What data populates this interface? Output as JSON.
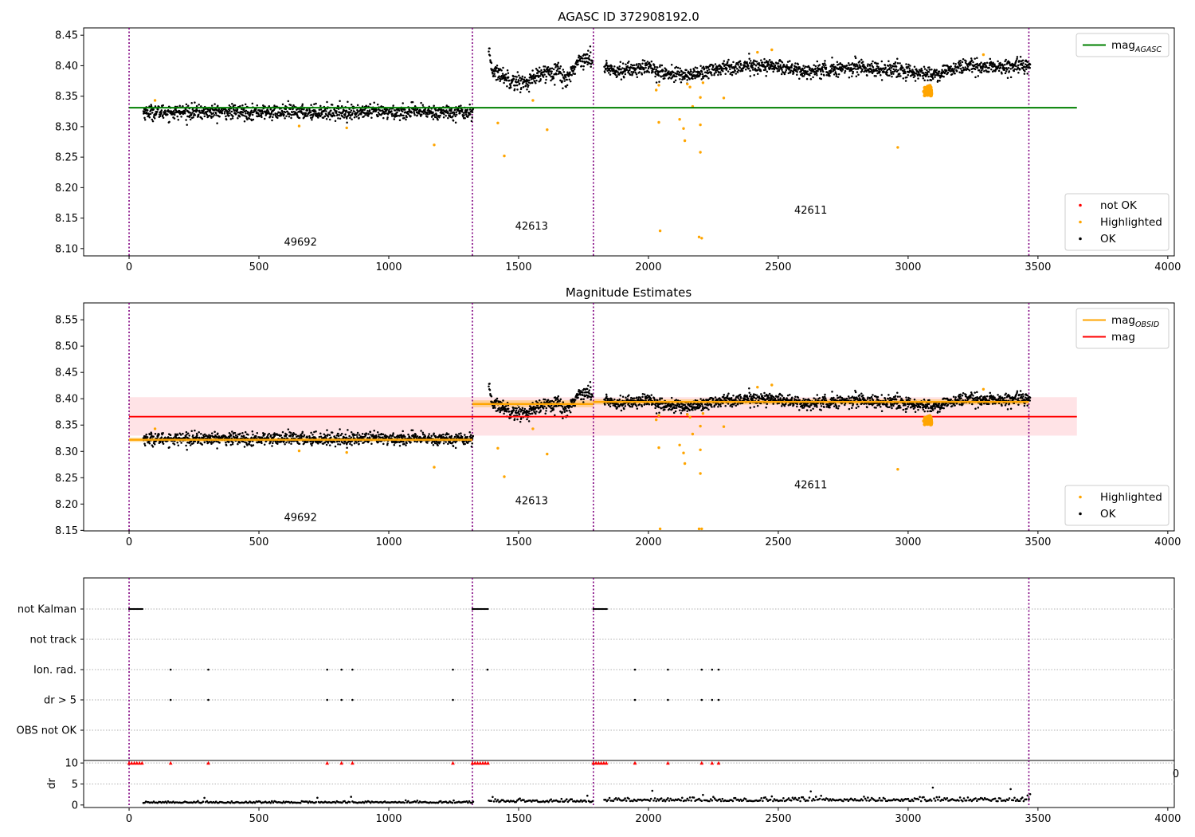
{
  "colors": {
    "ok": "#000000",
    "highlighted": "#FFA500",
    "not_ok": "#FF0000",
    "obs_boundary": "#800080",
    "agasc_line": "#008000",
    "obsid_line": "#FFA500",
    "mag_line": "#FF0000",
    "mag_band": "#FFC0C8"
  },
  "chart_data": [
    {
      "type": "scatter",
      "title": "AGASC ID 372908192.0",
      "xlim": [
        -175,
        4025
      ],
      "ylim": [
        8.088,
        8.462
      ],
      "xticks": [
        0,
        500,
        1000,
        1500,
        2000,
        2500,
        3000,
        3500,
        4000
      ],
      "yticks": [
        8.1,
        8.15,
        8.2,
        8.25,
        8.3,
        8.35,
        8.4,
        8.45
      ],
      "ytick_labels": [
        "8.10",
        "8.15",
        "8.20",
        "8.25",
        "8.30",
        "8.35",
        "8.40",
        "8.45"
      ],
      "obs_boundaries": [
        0,
        1322,
        1788,
        3465
      ],
      "obs_labels": [
        {
          "text": "49692",
          "x": 660,
          "y": 8.105
        },
        {
          "text": "42613",
          "x": 1550,
          "y": 8.131
        },
        {
          "text": "42611",
          "x": 2625,
          "y": 8.157
        }
      ],
      "reference_line": {
        "name": "mag_AGASC",
        "value": 8.331,
        "x_range": [
          0,
          3650
        ]
      },
      "ok_segments": [
        {
          "x_range": [
            55,
            1325
          ],
          "trend": [
            [
              55,
              8.324
            ],
            [
              1325,
              8.324
            ]
          ],
          "noise": 0.006
        },
        {
          "x_range": [
            1385,
            1785
          ],
          "trend": [
            [
              1385,
              8.418
            ],
            [
              1400,
              8.392
            ],
            [
              1480,
              8.375
            ],
            [
              1530,
              8.372
            ],
            [
              1600,
              8.388
            ],
            [
              1650,
              8.395
            ],
            [
              1680,
              8.375
            ],
            [
              1710,
              8.395
            ],
            [
              1740,
              8.412
            ],
            [
              1785,
              8.41
            ]
          ],
          "noise": 0.007
        },
        {
          "x_range": [
            1830,
            3470
          ],
          "trend": [
            [
              1830,
              8.397
            ],
            [
              1900,
              8.392
            ],
            [
              2000,
              8.398
            ],
            [
              2050,
              8.388
            ],
            [
              2150,
              8.384
            ],
            [
              2300,
              8.398
            ],
            [
              2500,
              8.4
            ],
            [
              2600,
              8.39
            ],
            [
              2800,
              8.398
            ],
            [
              3000,
              8.39
            ],
            [
              3100,
              8.385
            ],
            [
              3200,
              8.398
            ],
            [
              3470,
              8.398
            ]
          ],
          "noise": 0.006
        }
      ],
      "highlighted_points": [
        [
          100,
          8.343
        ],
        [
          655,
          8.301
        ],
        [
          838,
          8.298
        ],
        [
          1175,
          8.27
        ],
        [
          1420,
          8.306
        ],
        [
          1445,
          8.252
        ],
        [
          1555,
          8.343
        ],
        [
          1610,
          8.295
        ],
        [
          2040,
          8.307
        ],
        [
          2045,
          8.129
        ],
        [
          2120,
          8.312
        ],
        [
          2135,
          8.297
        ],
        [
          2140,
          8.277
        ],
        [
          2195,
          8.119
        ],
        [
          2205,
          8.117
        ],
        [
          2200,
          8.258
        ],
        [
          2200,
          8.303
        ],
        [
          2200,
          8.348
        ],
        [
          2290,
          8.347
        ],
        [
          2420,
          8.422
        ],
        [
          2475,
          8.426
        ],
        [
          2960,
          8.266
        ],
        [
          3290,
          8.418
        ],
        [
          2030,
          8.36
        ],
        [
          2040,
          8.368
        ],
        [
          2150,
          8.37
        ],
        [
          2160,
          8.365
        ],
        [
          2210,
          8.372
        ],
        [
          2170,
          8.333
        ]
      ],
      "highlighted_cluster": {
        "x_range": [
          3060,
          3090
        ],
        "y_range": [
          8.35,
          8.368
        ],
        "count": 45
      },
      "legends": [
        {
          "position": "upper right",
          "entries": [
            {
              "label": "mag",
              "sub": "AGASC",
              "marker": "line",
              "color": "agasc_line"
            }
          ]
        },
        {
          "position": "lower right",
          "entries": [
            {
              "label": "not OK",
              "marker": "dot",
              "color": "not_ok"
            },
            {
              "label": "Highlighted",
              "marker": "dot",
              "color": "highlighted"
            },
            {
              "label": "OK",
              "marker": "dot",
              "color": "ok"
            }
          ]
        }
      ]
    },
    {
      "type": "scatter",
      "title": "Magnitude Estimates",
      "xlim": [
        -175,
        4025
      ],
      "ylim": [
        8.149,
        8.582
      ],
      "xticks": [
        0,
        500,
        1000,
        1500,
        2000,
        2500,
        3000,
        3500,
        4000
      ],
      "yticks": [
        8.15,
        8.2,
        8.25,
        8.3,
        8.35,
        8.4,
        8.45,
        8.5,
        8.55
      ],
      "ytick_labels": [
        "8.15",
        "8.20",
        "8.25",
        "8.30",
        "8.35",
        "8.40",
        "8.45",
        "8.50",
        "8.55"
      ],
      "obs_boundaries": [
        0,
        1322,
        1788,
        3465
      ],
      "obs_labels": [
        {
          "text": "49692",
          "x": 660,
          "y": 8.168
        },
        {
          "text": "42613",
          "x": 1550,
          "y": 8.2
        },
        {
          "text": "42611",
          "x": 2625,
          "y": 8.23
        }
      ],
      "mag_line": {
        "name": "mag",
        "value": 8.366,
        "band": [
          8.33,
          8.403
        ],
        "x_range": [
          0,
          3650
        ]
      },
      "obsid_lines": [
        {
          "x_range": [
            0,
            1322
          ],
          "value": 8.322,
          "band": [
            8.318,
            8.326
          ]
        },
        {
          "x_range": [
            1322,
            1788
          ],
          "value": 8.39,
          "band": [
            8.384,
            8.397
          ]
        },
        {
          "x_range": [
            1788,
            3465
          ],
          "value": 8.394,
          "band": [
            8.389,
            8.399
          ]
        }
      ],
      "ok_segments": [
        {
          "x_range": [
            55,
            1325
          ],
          "trend": [
            [
              55,
              8.324
            ],
            [
              1325,
              8.324
            ]
          ],
          "noise": 0.006
        },
        {
          "x_range": [
            1385,
            1785
          ],
          "trend": [
            [
              1385,
              8.418
            ],
            [
              1400,
              8.392
            ],
            [
              1480,
              8.375
            ],
            [
              1530,
              8.372
            ],
            [
              1600,
              8.388
            ],
            [
              1650,
              8.395
            ],
            [
              1680,
              8.375
            ],
            [
              1710,
              8.395
            ],
            [
              1740,
              8.412
            ],
            [
              1785,
              8.41
            ]
          ],
          "noise": 0.007
        },
        {
          "x_range": [
            1830,
            3470
          ],
          "trend": [
            [
              1830,
              8.397
            ],
            [
              1900,
              8.392
            ],
            [
              2000,
              8.398
            ],
            [
              2050,
              8.388
            ],
            [
              2150,
              8.384
            ],
            [
              2300,
              8.398
            ],
            [
              2500,
              8.4
            ],
            [
              2600,
              8.39
            ],
            [
              2800,
              8.398
            ],
            [
              3000,
              8.39
            ],
            [
              3100,
              8.385
            ],
            [
              3200,
              8.398
            ],
            [
              3470,
              8.398
            ]
          ],
          "noise": 0.006
        }
      ],
      "highlighted_points": [
        [
          100,
          8.343
        ],
        [
          655,
          8.301
        ],
        [
          838,
          8.298
        ],
        [
          1175,
          8.27
        ],
        [
          1420,
          8.306
        ],
        [
          1445,
          8.252
        ],
        [
          1555,
          8.343
        ],
        [
          1610,
          8.295
        ],
        [
          2040,
          8.307
        ],
        [
          2045,
          8.153
        ],
        [
          2120,
          8.312
        ],
        [
          2135,
          8.297
        ],
        [
          2140,
          8.277
        ],
        [
          2195,
          8.153
        ],
        [
          2205,
          8.153
        ],
        [
          2200,
          8.258
        ],
        [
          2200,
          8.303
        ],
        [
          2200,
          8.348
        ],
        [
          2290,
          8.347
        ],
        [
          2420,
          8.422
        ],
        [
          2475,
          8.426
        ],
        [
          2960,
          8.266
        ],
        [
          3290,
          8.418
        ],
        [
          2030,
          8.36
        ],
        [
          2040,
          8.368
        ],
        [
          2150,
          8.37
        ],
        [
          2160,
          8.365
        ],
        [
          2210,
          8.372
        ],
        [
          2170,
          8.333
        ]
      ],
      "highlighted_cluster": {
        "x_range": [
          3060,
          3090
        ],
        "y_range": [
          8.35,
          8.368
        ],
        "count": 45
      },
      "legends": [
        {
          "position": "upper right",
          "entries": [
            {
              "label": "mag",
              "sub": "OBSID",
              "marker": "line",
              "color": "obsid_line"
            },
            {
              "label": "mag",
              "marker": "line",
              "color": "mag_line"
            }
          ]
        },
        {
          "position": "lower right",
          "entries": [
            {
              "label": "Highlighted",
              "marker": "dot",
              "color": "highlighted"
            },
            {
              "label": "OK",
              "marker": "dot",
              "color": "ok"
            }
          ]
        }
      ]
    },
    {
      "type": "scatter",
      "title": "",
      "xlim": [
        -175,
        4025
      ],
      "categories": [
        "not Kalman",
        "not track",
        "Ion. rad.",
        "dr > 5",
        "OBS not OK"
      ],
      "obs_boundaries": [
        0,
        1322,
        1788,
        3465
      ],
      "flags": {
        "not Kalman": {
          "x_ranges": [
            [
              0,
              55
            ],
            [
              1322,
              1385
            ],
            [
              1788,
              1840
            ]
          ]
        },
        "not track": {
          "x_ranges": []
        },
        "Ion. rad.": {
          "x": [
            160,
            305,
            763,
            818,
            860,
            1247,
            1380,
            1948,
            2075,
            2205,
            2245,
            2270
          ]
        },
        "dr > 5": {
          "x": [
            160,
            305,
            763,
            818,
            860,
            1247,
            1948,
            2075,
            2205,
            2245,
            2270
          ]
        },
        "OBS not OK": {
          "x": []
        }
      }
    },
    {
      "type": "scatter",
      "title": "",
      "ylabel": "dr",
      "xlim": [
        -175,
        4025
      ],
      "ylim": [
        -0.6,
        10.6
      ],
      "xticks": [
        0,
        500,
        1000,
        1500,
        2000,
        2500,
        3000,
        3500,
        4000
      ],
      "yticks": [
        0,
        5,
        10
      ],
      "obs_boundaries": [
        0,
        1322,
        1788,
        3465
      ],
      "ok_segments": [
        {
          "x_range": [
            55,
            1325
          ],
          "mean": 0.5,
          "noise": 0.2
        },
        {
          "x_range": [
            1385,
            1785
          ],
          "mean": 0.7,
          "noise": 0.35
        },
        {
          "x_range": [
            1830,
            3470
          ],
          "mean": 0.9,
          "noise": 0.45
        }
      ],
      "capped_value": 10,
      "capped_x": [
        0,
        10,
        20,
        30,
        40,
        50,
        160,
        305,
        763,
        818,
        860,
        1247,
        1322,
        1332,
        1342,
        1352,
        1362,
        1372,
        1382,
        1788,
        1798,
        1808,
        1818,
        1828,
        1838,
        1948,
        2075,
        2205,
        2245,
        2270
      ],
      "stray_tick_label": "0"
    }
  ]
}
